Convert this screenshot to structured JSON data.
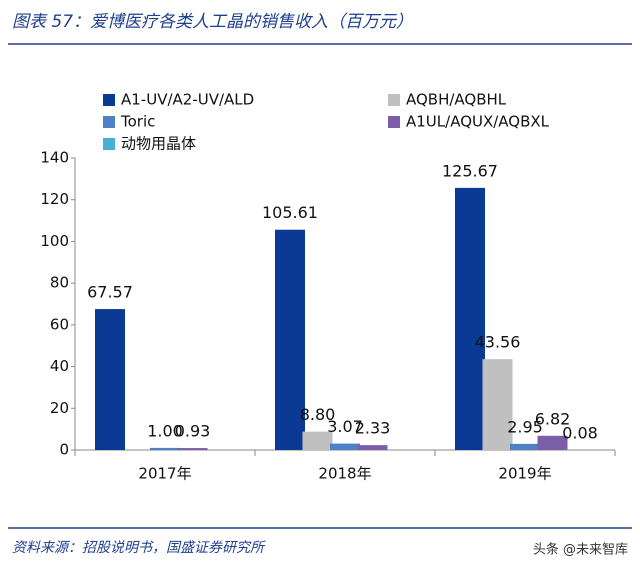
{
  "chart_data": {
    "type": "bar",
    "title": "图表 57：爱博医疗各类人工晶的销售收入（百万元）",
    "source": "资料来源：招股说明书，国盛证券研究所",
    "watermark": "头条 @未来智库",
    "categories": [
      "2017年",
      "2018年",
      "2019年"
    ],
    "series": [
      {
        "name": "A1-UV/A2-UV/ALD",
        "color": "#0b3a94",
        "values": [
          67.57,
          105.61,
          125.67
        ],
        "value_labels": [
          "67.57",
          "105.61",
          "125.67"
        ]
      },
      {
        "name": "AQBH/AQBHL",
        "color": "#c0c0c0",
        "values": [
          null,
          8.8,
          43.56
        ],
        "value_labels": [
          null,
          "8.80",
          "43.56"
        ]
      },
      {
        "name": "Toric",
        "color": "#4f7fc4",
        "values": [
          1.0,
          3.07,
          2.95
        ],
        "value_labels": [
          "1.00",
          "3.07",
          "2.95"
        ]
      },
      {
        "name": "A1UL/AQUX/AQBXL",
        "color": "#7a5ea8",
        "values": [
          0.93,
          2.33,
          6.82
        ],
        "value_labels": [
          "0.93",
          "2.33",
          "6.82"
        ]
      },
      {
        "name": "动物用晶体",
        "color": "#4aaed0",
        "values": [
          null,
          null,
          0.08
        ],
        "value_labels": [
          null,
          null,
          "0.08"
        ]
      }
    ],
    "ylim": [
      0,
      140
    ],
    "yticks": [
      0,
      20,
      40,
      60,
      80,
      100,
      120,
      140
    ],
    "grid": false
  }
}
